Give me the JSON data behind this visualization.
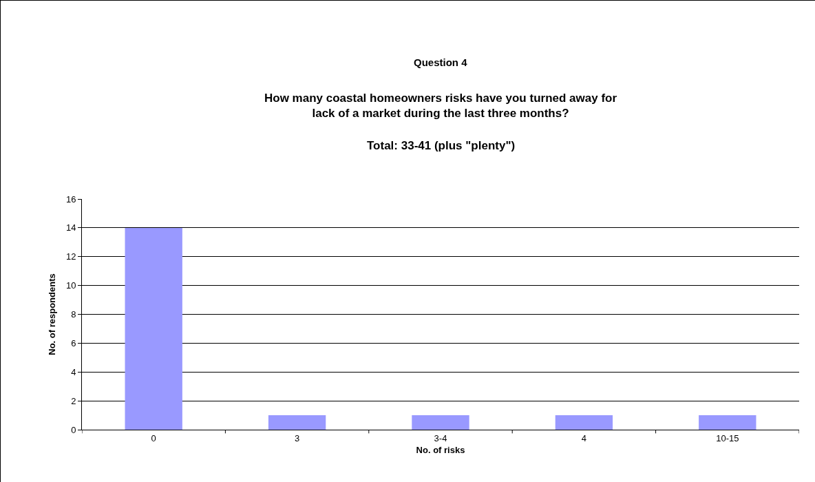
{
  "chart_data": {
    "type": "bar",
    "title": "Question 4",
    "subtitle": "How many coastal homeowners risks have you turned away for\nlack of a market during the last three months?",
    "annotations": [
      "Total: 33-41 (plus \"plenty\")"
    ],
    "xlabel": "No. of risks",
    "ylabel": "No. of respondents",
    "categories": [
      "0",
      "3",
      "3-4",
      "4",
      "10-15"
    ],
    "values": [
      14,
      1,
      1,
      1,
      1
    ],
    "color": "#9999ff",
    "ylim": [
      0,
      16
    ],
    "yticks": [
      0,
      2,
      4,
      6,
      8,
      10,
      12,
      14,
      16
    ],
    "grid": "y"
  }
}
